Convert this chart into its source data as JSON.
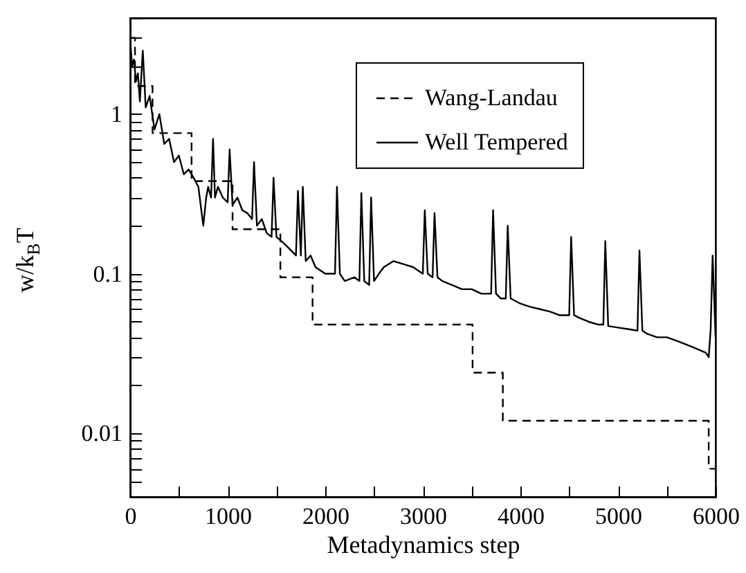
{
  "chart_data": {
    "type": "line",
    "xlabel": "Metadynamics step",
    "ylabel": "w/k$_{B}$T",
    "xlim": [
      0,
      6000
    ],
    "ylim": [
      0.004,
      4
    ],
    "log": "y",
    "grid": false,
    "legend": "top right",
    "marker": "none",
    "xticks": [
      0,
      {
        "value": 500,
        "label": null
      },
      1000,
      {
        "value": 1500,
        "label": null
      },
      2000,
      {
        "value": 2500,
        "label": null
      },
      3000,
      {
        "value": 3500,
        "label": null
      },
      4000,
      {
        "value": 4500,
        "label": null
      },
      5000,
      {
        "value": 5500,
        "label": null
      },
      6000
    ],
    "yticks": [
      {
        "value": 0.004,
        "label": null
      },
      {
        "value": 0.005,
        "label": null
      },
      {
        "value": 0.006,
        "label": null
      },
      {
        "value": 0.007,
        "label": null
      },
      {
        "value": 0.008,
        "label": null
      },
      {
        "value": 0.009,
        "label": null
      },
      0.01,
      {
        "value": 0.02,
        "label": null
      },
      {
        "value": 0.03,
        "label": null
      },
      {
        "value": 0.04,
        "label": null
      },
      {
        "value": 0.05,
        "label": null
      },
      {
        "value": 0.06,
        "label": null
      },
      {
        "value": 0.07,
        "label": null
      },
      {
        "value": 0.08,
        "label": null
      },
      {
        "value": 0.09,
        "label": null
      },
      0.1,
      {
        "value": 0.2,
        "label": null
      },
      {
        "value": 0.3,
        "label": null
      },
      {
        "value": 0.4,
        "label": null
      },
      {
        "value": 0.5,
        "label": null
      },
      {
        "value": 0.6,
        "label": null
      },
      {
        "value": 0.7,
        "label": null
      },
      {
        "value": 0.8,
        "label": null
      },
      {
        "value": 0.9,
        "label": null
      },
      1,
      {
        "value": 2,
        "label": null
      },
      {
        "value": 3,
        "label": null
      },
      {
        "value": 4,
        "label": null
      }
    ],
    "series": [
      {
        "name": "Wang-Landau",
        "type": "step",
        "color": "#000000",
        "line_style": "dashed",
        "x": [
          0,
          50,
          230,
          630,
          1050,
          1540,
          1870,
          3510,
          3820,
          5930,
          6000
        ],
        "values": [
          3,
          1.5,
          0.76,
          0.38,
          0.19,
          0.095,
          0.048,
          0.024,
          0.012,
          0.006,
          0.006
        ]
      },
      {
        "name": "Well Tempered",
        "type": "line",
        "color": "#000000",
        "line_style": "solid",
        "x": [
          0,
          20,
          40,
          60,
          80,
          100,
          130,
          160,
          200,
          250,
          300,
          350,
          400,
          450,
          500,
          550,
          600,
          650,
          700,
          730,
          750,
          780,
          800,
          830,
          850,
          870,
          900,
          950,
          1000,
          1020,
          1050,
          1100,
          1150,
          1200,
          1250,
          1270,
          1300,
          1350,
          1400,
          1450,
          1470,
          1500,
          1550,
          1600,
          1650,
          1700,
          1720,
          1750,
          1770,
          1800,
          1850,
          1900,
          2000,
          2100,
          2120,
          2150,
          2200,
          2300,
          2350,
          2370,
          2400,
          2450,
          2470,
          2500,
          2550,
          2600,
          2700,
          2800,
          2900,
          3000,
          3020,
          3050,
          3100,
          3120,
          3150,
          3200,
          3300,
          3400,
          3500,
          3600,
          3700,
          3720,
          3750,
          3800,
          3850,
          3870,
          3900,
          4000,
          4100,
          4200,
          4300,
          4400,
          4500,
          4520,
          4550,
          4600,
          4700,
          4800,
          4850,
          4870,
          4900,
          5000,
          5100,
          5200,
          5220,
          5250,
          5300,
          5400,
          5500,
          5600,
          5700,
          5800,
          5850,
          5900,
          5930,
          5950,
          5970,
          6000
        ],
        "values": [
          3,
          2,
          2.2,
          1.6,
          1.8,
          1.2,
          2.5,
          1.1,
          1.3,
          0.8,
          1.0,
          0.65,
          0.7,
          0.5,
          0.55,
          0.42,
          0.45,
          0.4,
          0.35,
          0.25,
          0.2,
          0.3,
          0.35,
          0.3,
          0.7,
          0.3,
          0.35,
          0.3,
          0.28,
          0.6,
          0.27,
          0.3,
          0.25,
          0.24,
          0.22,
          0.5,
          0.2,
          0.22,
          0.18,
          0.17,
          0.4,
          0.17,
          0.16,
          0.15,
          0.14,
          0.13,
          0.33,
          0.13,
          0.35,
          0.12,
          0.13,
          0.11,
          0.1,
          0.1,
          0.35,
          0.1,
          0.09,
          0.095,
          0.09,
          0.32,
          0.09,
          0.085,
          0.3,
          0.09,
          0.1,
          0.11,
          0.12,
          0.115,
          0.11,
          0.1,
          0.25,
          0.1,
          0.095,
          0.24,
          0.095,
          0.09,
          0.085,
          0.08,
          0.08,
          0.075,
          0.075,
          0.25,
          0.075,
          0.07,
          0.07,
          0.2,
          0.07,
          0.065,
          0.062,
          0.06,
          0.058,
          0.055,
          0.055,
          0.17,
          0.055,
          0.053,
          0.05,
          0.048,
          0.048,
          0.16,
          0.047,
          0.046,
          0.045,
          0.044,
          0.14,
          0.044,
          0.042,
          0.04,
          0.04,
          0.038,
          0.036,
          0.034,
          0.033,
          0.032,
          0.03,
          0.045,
          0.13,
          0.04
        ]
      }
    ]
  }
}
